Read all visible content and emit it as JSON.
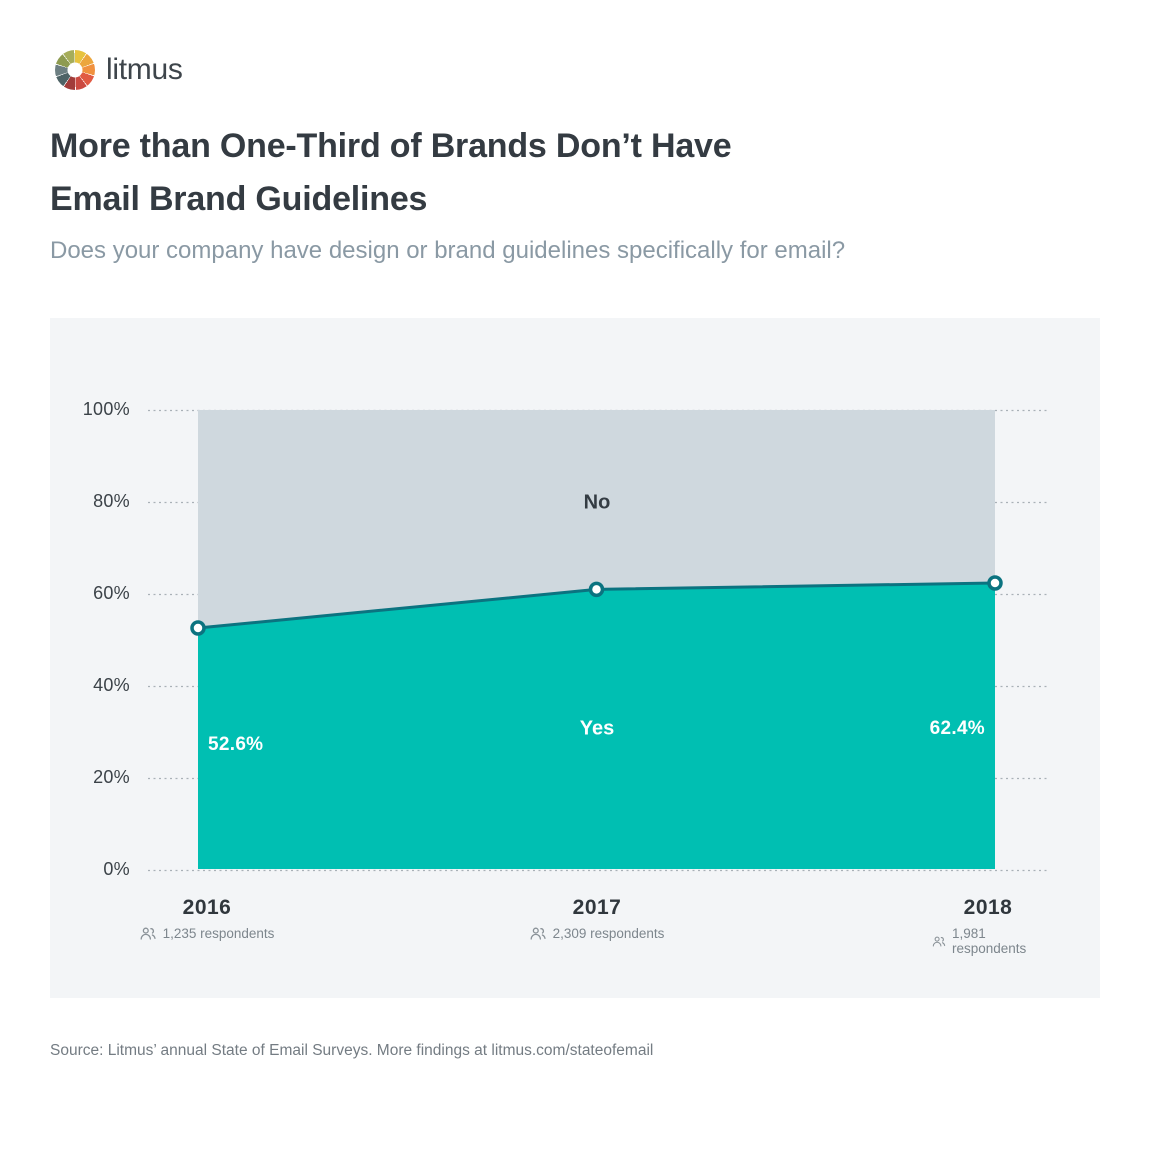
{
  "brand": {
    "name": "litmus"
  },
  "header": {
    "title_line1": "More than One-Third of Brands Don’t Have",
    "title_line2": "Email Brand Guidelines",
    "subtitle": "Does your company have design or brand guidelines specifically for email?"
  },
  "chart_data": {
    "type": "area",
    "stacked": true,
    "title": "Does your company have design or brand guidelines specifically for email?",
    "categories": [
      "2016",
      "2017",
      "2018"
    ],
    "respondents": [
      "1,235 respondents",
      "2,309 respondents",
      "1,981 respondents"
    ],
    "series": [
      {
        "name": "Yes",
        "values": [
          52.6,
          61.0,
          62.4
        ],
        "color": "#00bfb2"
      },
      {
        "name": "No",
        "values": [
          47.4,
          39.0,
          37.6
        ],
        "color": "#cfd8de"
      }
    ],
    "point_labels": [
      "52.6%",
      "",
      "62.4%"
    ],
    "y_ticks": [
      "100%",
      "80%",
      "60%",
      "40%",
      "20%",
      "0%"
    ],
    "ylim": [
      0,
      100
    ],
    "grid": "horizontal-dotted",
    "legend_position": "in-plot",
    "line_color": "#0b7380",
    "marker": "open-circle",
    "panel_bg": "#f3f5f7"
  },
  "footer": {
    "source": "Source: Litmus’ annual State of Email Surveys. More findings at litmus.com/stateofemail"
  }
}
